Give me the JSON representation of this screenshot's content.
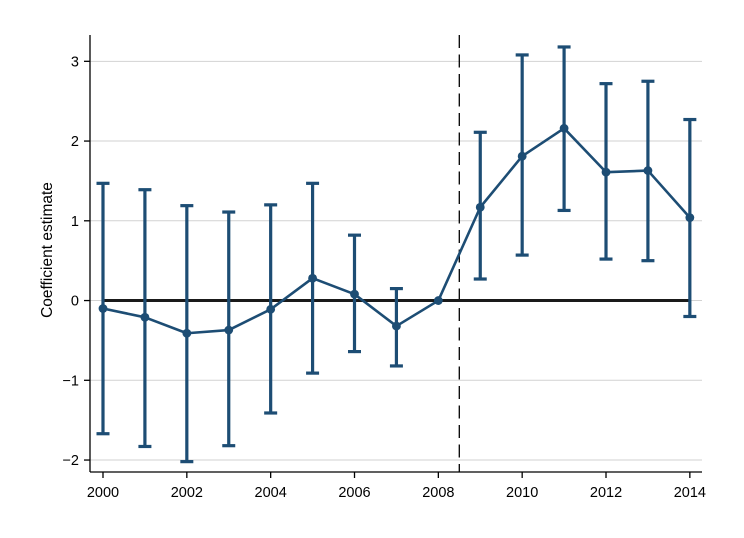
{
  "chart_data": {
    "type": "line",
    "title": "",
    "xlabel": "",
    "ylabel": "Coefficient estimate",
    "x": [
      2000,
      2001,
      2002,
      2003,
      2004,
      2005,
      2006,
      2007,
      2008,
      2009,
      2010,
      2011,
      2012,
      2013,
      2014
    ],
    "series": [
      {
        "name": "coefficient-estimate",
        "values": [
          -0.1,
          -0.21,
          -0.41,
          -0.37,
          -0.11,
          0.28,
          0.08,
          -0.32,
          0.0,
          1.17,
          1.81,
          2.16,
          1.61,
          1.63,
          1.04
        ],
        "ci_low": [
          -1.67,
          -1.83,
          -2.02,
          -1.82,
          -1.41,
          -0.91,
          -0.64,
          -0.82,
          null,
          0.27,
          0.57,
          1.13,
          0.52,
          0.5,
          -0.2
        ],
        "ci_high": [
          1.47,
          1.39,
          1.19,
          1.11,
          1.2,
          1.47,
          0.82,
          0.15,
          null,
          2.11,
          3.08,
          3.18,
          2.72,
          2.75,
          2.27
        ]
      }
    ],
    "x_ticks": [
      2000,
      2002,
      2004,
      2006,
      2008,
      2010,
      2012,
      2014
    ],
    "x_tick_labels": [
      "2000",
      "2002",
      "2004",
      "2006",
      "2008",
      "2010",
      "2012",
      "2014"
    ],
    "y_ticks": [
      -2,
      -1,
      0,
      1,
      2,
      3
    ],
    "y_tick_labels": [
      "−2",
      "−1",
      "0",
      "1",
      "2",
      "3"
    ],
    "xlim": [
      1999.69,
      2014.29
    ],
    "ylim": [
      -2.15,
      3.33
    ],
    "grid": "horizontal",
    "legend": "none",
    "reference_lines": {
      "horizontal_y": 0,
      "horizontal_span_x": [
        2000,
        2014
      ],
      "vertical_x": 2008.5,
      "vertical_style": "dashed"
    },
    "colors": {
      "series": "#1d4d74",
      "grid": "#d2d2d2",
      "zero_line": "#1a1a1a",
      "reference_dashed": "#000000",
      "axis": "#000000",
      "text": "#000000",
      "background": "#ffffff"
    }
  }
}
